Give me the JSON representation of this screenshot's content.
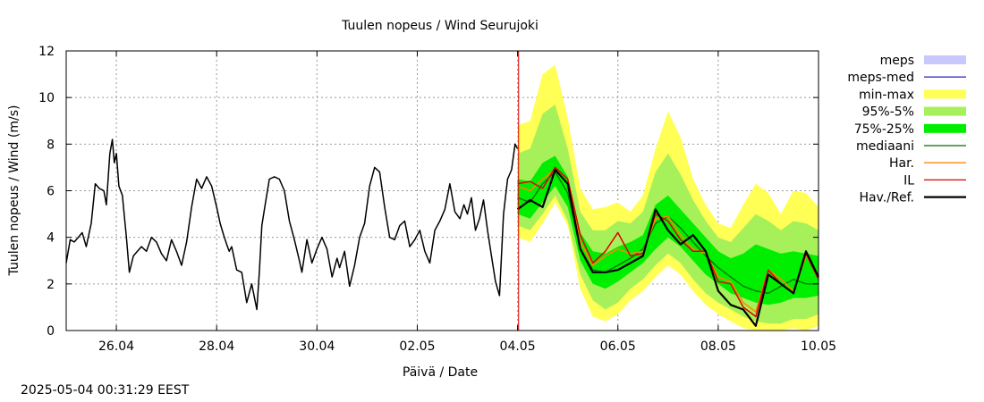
{
  "chart_data": {
    "type": "line",
    "title": "Tuulen nopeus / Wind  Seurujoki",
    "xlabel": "Päivä / Date",
    "ylabel": "Tuulen nopeus / Wind (m/s)",
    "ylim": [
      0,
      12
    ],
    "yticks": [
      0,
      2,
      4,
      6,
      8,
      10,
      12
    ],
    "x_unit": "days",
    "xlim": [
      0,
      15
    ],
    "xticks": [
      {
        "x": 1,
        "label": "26.04"
      },
      {
        "x": 3,
        "label": "28.04"
      },
      {
        "x": 5,
        "label": "30.04"
      },
      {
        "x": 7,
        "label": "02.05"
      },
      {
        "x": 9,
        "label": "04.05"
      },
      {
        "x": 11,
        "label": "06.05"
      },
      {
        "x": 13,
        "label": "08.05"
      },
      {
        "x": 15,
        "label": "10.05"
      }
    ],
    "grid": true,
    "legend_position": "right",
    "forecast_start_x": 9.02,
    "colors": {
      "meps": "#c8c8ff",
      "meps_med": "#3333cc",
      "min_max": "#ffff55",
      "p95_5": "#a6f15a",
      "p75_25": "#00ee00",
      "mediaani": "#007000",
      "har": "#ff8800",
      "il": "#e00000",
      "hav": "#000000",
      "now_line": "#e00000"
    },
    "legend": [
      {
        "label": "meps",
        "key": "meps",
        "style": "band"
      },
      {
        "label": "meps-med",
        "key": "meps_med",
        "style": "line"
      },
      {
        "label": "min-max",
        "key": "min_max",
        "style": "band"
      },
      {
        "label": "95%-5%",
        "key": "p95_5",
        "style": "band"
      },
      {
        "label": "75%-25%",
        "key": "p75_25",
        "style": "band"
      },
      {
        "label": "mediaani",
        "key": "mediaani",
        "style": "line"
      },
      {
        "label": "Har.",
        "key": "har",
        "style": "line"
      },
      {
        "label": "IL",
        "key": "il",
        "style": "line"
      },
      {
        "label": "Hav./Ref.",
        "key": "hav",
        "style": "thickline"
      }
    ],
    "observed": {
      "x": [
        0,
        0.08,
        0.16,
        0.24,
        0.32,
        0.4,
        0.5,
        0.58,
        0.66,
        0.75,
        0.8,
        0.87,
        0.92,
        0.96,
        1.0,
        1.05,
        1.12,
        1.2,
        1.26,
        1.34,
        1.42,
        1.5,
        1.6,
        1.7,
        1.8,
        1.9,
        2.0,
        2.1,
        2.2,
        2.3,
        2.4,
        2.5,
        2.6,
        2.7,
        2.8,
        2.9,
        3.0,
        3.07,
        3.14,
        3.2,
        3.25,
        3.3,
        3.4,
        3.5,
        3.6,
        3.7,
        3.8,
        3.85,
        3.9,
        3.96,
        4.05,
        4.15,
        4.25,
        4.35,
        4.45,
        4.55,
        4.65,
        4.7,
        4.8,
        4.9,
        5.0,
        5.1,
        5.2,
        5.3,
        5.4,
        5.45,
        5.55,
        5.65,
        5.75,
        5.85,
        5.95,
        6.05,
        6.15,
        6.25,
        6.35,
        6.45,
        6.55,
        6.65,
        6.75,
        6.85,
        6.95,
        7.05,
        7.15,
        7.25,
        7.35,
        7.45,
        7.55,
        7.65,
        7.75,
        7.85,
        7.93,
        8.0,
        8.08,
        8.16,
        8.24,
        8.32,
        8.4,
        8.48,
        8.56,
        8.64,
        8.72,
        8.8,
        8.88,
        8.95,
        9.0
      ],
      "y": [
        2.9,
        3.9,
        3.8,
        4.0,
        4.2,
        3.6,
        4.6,
        6.3,
        6.1,
        6.0,
        5.4,
        7.6,
        8.2,
        7.2,
        7.6,
        6.2,
        5.8,
        4.0,
        2.5,
        3.2,
        3.4,
        3.6,
        3.4,
        4.0,
        3.8,
        3.3,
        3.0,
        3.9,
        3.4,
        2.8,
        3.8,
        5.3,
        6.5,
        6.1,
        6.6,
        6.2,
        5.3,
        4.6,
        4.1,
        3.7,
        3.4,
        3.6,
        2.6,
        2.5,
        1.2,
        2.0,
        0.9,
        2.5,
        4.5,
        5.3,
        6.5,
        6.6,
        6.5,
        6.0,
        4.7,
        3.9,
        3.0,
        2.5,
        3.9,
        2.9,
        3.5,
        4.0,
        3.5,
        2.3,
        3.1,
        2.7,
        3.4,
        1.9,
        2.8,
        4.0,
        4.6,
        6.2,
        7.0,
        6.8,
        5.3,
        4.0,
        3.9,
        4.5,
        4.7,
        3.6,
        3.9,
        4.3,
        3.4,
        2.9,
        4.3,
        4.7,
        5.2,
        6.3,
        5.1,
        4.8,
        5.4,
        5.0,
        5.7,
        4.3,
        4.8,
        5.6,
        4.3,
        3.2,
        2.1,
        1.5,
        5.0,
        6.5,
        6.9,
        8.0,
        7.8
      ]
    },
    "forecast_x": [
      9.0,
      9.25,
      9.5,
      9.75,
      10.0,
      10.25,
      10.5,
      10.75,
      11.0,
      11.25,
      11.5,
      11.75,
      12.0,
      12.25,
      12.5,
      12.75,
      13.0,
      13.25,
      13.5,
      13.75,
      14.0,
      14.25,
      14.5,
      14.75,
      15.0
    ],
    "min_max": {
      "low": [
        4.0,
        3.8,
        4.6,
        5.5,
        4.5,
        1.8,
        0.6,
        0.4,
        0.7,
        1.3,
        1.7,
        2.3,
        2.8,
        2.4,
        1.7,
        1.1,
        0.7,
        0.4,
        0.1,
        0.0,
        0.0,
        0.0,
        0.1,
        0.0,
        0.2
      ],
      "high": [
        8.8,
        9.0,
        11.0,
        11.4,
        9.1,
        6.1,
        5.2,
        5.3,
        5.5,
        5.1,
        5.8,
        7.8,
        9.4,
        8.3,
        6.5,
        5.4,
        4.6,
        4.4,
        5.4,
        6.3,
        5.9,
        5.0,
        6.0,
        5.9,
        5.3
      ]
    },
    "p95_5": {
      "low": [
        4.5,
        4.3,
        5.0,
        5.8,
        4.7,
        2.4,
        1.3,
        0.9,
        1.2,
        1.8,
        2.2,
        2.8,
        3.3,
        2.9,
        2.2,
        1.6,
        1.2,
        0.9,
        0.6,
        0.4,
        0.3,
        0.3,
        0.5,
        0.5,
        0.7
      ],
      "high": [
        7.6,
        7.8,
        9.3,
        9.7,
        7.8,
        5.1,
        4.3,
        4.3,
        4.7,
        4.6,
        5.1,
        6.8,
        7.6,
        6.7,
        5.6,
        4.7,
        4.0,
        3.8,
        4.4,
        5.0,
        4.7,
        4.3,
        4.7,
        4.6,
        4.3
      ]
    },
    "p75_25": {
      "low": [
        5.0,
        4.8,
        5.5,
        6.2,
        5.3,
        3.0,
        2.0,
        1.8,
        2.1,
        2.5,
        2.9,
        3.5,
        4.0,
        3.6,
        3.0,
        2.4,
        2.0,
        1.6,
        1.4,
        1.2,
        1.1,
        1.2,
        1.4,
        1.4,
        1.5
      ],
      "high": [
        6.5,
        6.4,
        7.2,
        7.5,
        6.6,
        4.2,
        3.4,
        3.3,
        3.6,
        3.8,
        4.1,
        5.4,
        5.8,
        5.2,
        4.6,
        4.0,
        3.4,
        3.1,
        3.3,
        3.7,
        3.5,
        3.3,
        3.4,
        3.3,
        3.2
      ]
    },
    "mediaani": [
      5.7,
      5.5,
      6.3,
      6.8,
      5.9,
      3.5,
      2.6,
      2.5,
      2.8,
      3.1,
      3.5,
      4.6,
      4.9,
      4.4,
      3.8,
      3.2,
      2.7,
      2.3,
      1.9,
      1.7,
      1.6,
      1.9,
      2.2,
      2.0,
      2.0
    ],
    "har": [
      6.2,
      6.0,
      6.5,
      6.9,
      6.3,
      3.8,
      2.8,
      3.2,
      3.5,
      3.3,
      3.4,
      4.8,
      4.9,
      4.1,
      3.5,
      3.3,
      2.3,
      2.1,
      1.2,
      0.8,
      2.6,
      2.2,
      1.7,
      3.2,
      2.4
    ],
    "il": [
      6.3,
      6.4,
      6.1,
      7.0,
      6.5,
      4.1,
      2.9,
      3.4,
      4.2,
      3.2,
      3.3,
      5.0,
      4.7,
      3.9,
      3.4,
      3.4,
      2.1,
      2.0,
      1.0,
      0.6,
      2.6,
      2.0,
      1.6,
      3.3,
      2.2
    ],
    "hav": [
      5.2,
      5.6,
      5.3,
      6.9,
      6.3,
      3.5,
      2.5,
      2.5,
      2.6,
      2.9,
      3.2,
      5.2,
      4.3,
      3.7,
      4.1,
      3.4,
      1.7,
      1.1,
      0.9,
      0.2,
      2.4,
      2.0,
      1.6,
      3.4,
      2.3
    ]
  },
  "footer": {
    "timestamp": "2025-05-04 00:31:29 EEST"
  }
}
